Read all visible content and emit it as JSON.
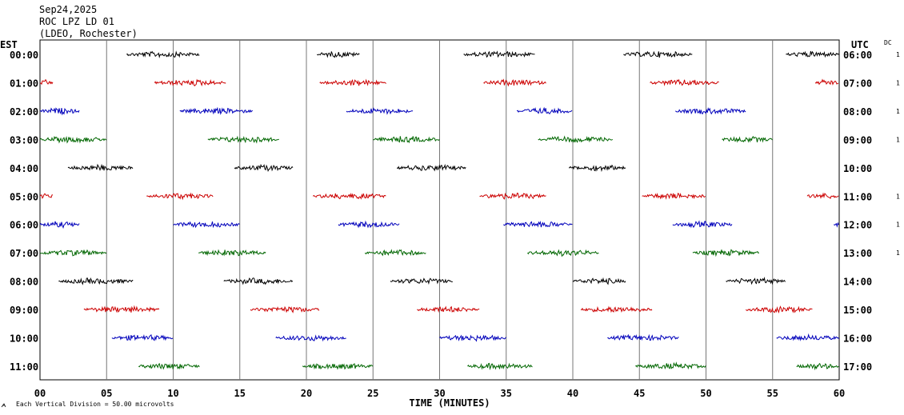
{
  "header": {
    "date": "Sep24,2025",
    "station": "ROC LPZ LD 01",
    "network": "(LDEO, Rochester)"
  },
  "left_axis_title": "EST",
  "right_axis_title": "UTC",
  "dc_title": "DC",
  "footer_note": "Each Vertical Division =   50.00 microvolts",
  "chart_data": {
    "type": "line",
    "xlabel": "TIME (MINUTES)",
    "xlim": [
      0,
      60
    ],
    "x_ticks": [
      "00",
      "05",
      "10",
      "15",
      "20",
      "25",
      "30",
      "35",
      "40",
      "45",
      "50",
      "55",
      "60"
    ],
    "grid_vertical": true,
    "trace_colors": [
      "#000000",
      "#cc0000",
      "#0000bb",
      "#006600"
    ],
    "rows": [
      {
        "est": "00:00",
        "utc": "06:00",
        "dc": "1",
        "segments": [
          [
            6.5,
            12.0
          ],
          [
            20.8,
            24.0
          ],
          [
            31.8,
            37.2
          ],
          [
            43.8,
            49.0
          ],
          [
            56.0,
            60.0
          ]
        ]
      },
      {
        "est": "01:00",
        "utc": "07:00",
        "dc": "1",
        "segments": [
          [
            0.0,
            1.0
          ],
          [
            8.6,
            14.0
          ],
          [
            21.0,
            26.0
          ],
          [
            33.3,
            38.0
          ],
          [
            45.8,
            51.0
          ],
          [
            58.2,
            60.0
          ]
        ]
      },
      {
        "est": "02:00",
        "utc": "08:00",
        "dc": "1",
        "segments": [
          [
            0.0,
            3.0
          ],
          [
            10.5,
            16.0
          ],
          [
            23.0,
            28.0
          ],
          [
            35.8,
            40.0
          ],
          [
            47.7,
            53.0
          ]
        ]
      },
      {
        "est": "03:00",
        "utc": "09:00",
        "dc": "1",
        "segments": [
          [
            0.0,
            5.0
          ],
          [
            12.6,
            18.0
          ],
          [
            25.0,
            30.0
          ],
          [
            37.4,
            43.0
          ],
          [
            51.2,
            55.0
          ]
        ]
      },
      {
        "est": "04:00",
        "utc": "10:00",
        "dc": "",
        "segments": [
          [
            2.1,
            7.0
          ],
          [
            14.6,
            19.0
          ],
          [
            26.8,
            32.0
          ],
          [
            39.7,
            44.0
          ]
        ]
      },
      {
        "est": "05:00",
        "utc": "11:00",
        "dc": "1",
        "segments": [
          [
            0.0,
            1.0
          ],
          [
            8.0,
            13.0
          ],
          [
            20.5,
            26.0
          ],
          [
            33.0,
            38.0
          ],
          [
            45.2,
            50.0
          ],
          [
            57.6,
            60.0
          ]
        ]
      },
      {
        "est": "06:00",
        "utc": "12:00",
        "dc": "1",
        "segments": [
          [
            0.0,
            3.0
          ],
          [
            10.0,
            15.0
          ],
          [
            22.4,
            27.0
          ],
          [
            34.8,
            40.0
          ],
          [
            47.5,
            52.0
          ],
          [
            59.6,
            60.0
          ]
        ]
      },
      {
        "est": "07:00",
        "utc": "13:00",
        "dc": "1",
        "segments": [
          [
            0.0,
            5.0
          ],
          [
            11.9,
            17.0
          ],
          [
            24.4,
            29.0
          ],
          [
            36.6,
            42.0
          ],
          [
            49.0,
            54.0
          ]
        ]
      },
      {
        "est": "08:00",
        "utc": "14:00",
        "dc": "",
        "segments": [
          [
            1.4,
            7.0
          ],
          [
            13.8,
            19.0
          ],
          [
            26.3,
            31.0
          ],
          [
            40.0,
            44.0
          ],
          [
            51.5,
            56.0
          ]
        ]
      },
      {
        "est": "09:00",
        "utc": "15:00",
        "dc": "",
        "segments": [
          [
            3.3,
            9.0
          ],
          [
            15.8,
            21.0
          ],
          [
            28.3,
            33.0
          ],
          [
            40.6,
            46.0
          ],
          [
            53.0,
            58.0
          ]
        ]
      },
      {
        "est": "10:00",
        "utc": "16:00",
        "dc": "",
        "segments": [
          [
            5.4,
            10.0
          ],
          [
            17.7,
            23.0
          ],
          [
            30.0,
            35.0
          ],
          [
            42.6,
            48.0
          ],
          [
            55.3,
            60.0
          ]
        ]
      },
      {
        "est": "11:00",
        "utc": "17:00",
        "dc": "",
        "segments": [
          [
            7.4,
            12.0
          ],
          [
            19.7,
            25.0
          ],
          [
            32.1,
            37.0
          ],
          [
            44.7,
            50.0
          ],
          [
            56.8,
            60.0
          ]
        ]
      }
    ]
  }
}
